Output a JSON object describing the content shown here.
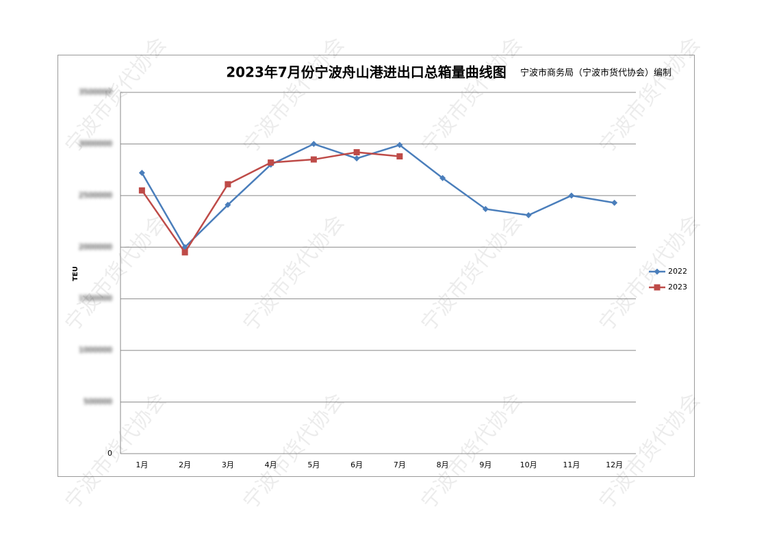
{
  "watermark": "宁波市货代协会",
  "chart_data": {
    "type": "line",
    "title": "2023年7月份宁波舟山港进出口总箱量曲线图",
    "subtitle": "宁波市商务局（宁波市货代协会）编制",
    "y_label": "TEU",
    "categories": [
      "1月",
      "2月",
      "3月",
      "4月",
      "5月",
      "6月",
      "7月",
      "8月",
      "9月",
      "10月",
      "11月",
      "12月"
    ],
    "series": [
      {
        "name": "2022",
        "color": "#4a7ebb",
        "marker": "diamond",
        "values": [
          2720000,
          2000000,
          2410000,
          2800000,
          3000000,
          2860000,
          2990000,
          2670000,
          2370000,
          2310000,
          2500000,
          2430000
        ]
      },
      {
        "name": "2023",
        "color": "#be4b48",
        "marker": "square",
        "values": [
          2550000,
          1950000,
          2610000,
          2820000,
          2850000,
          2920000,
          2880000,
          null,
          null,
          null,
          null,
          null
        ]
      }
    ],
    "ylim": [
      0,
      3500000
    ],
    "yticks": [
      0,
      500000,
      1000000,
      1500000,
      2000000,
      2500000,
      3000000,
      3500000
    ],
    "grid": true,
    "legend": "right"
  }
}
